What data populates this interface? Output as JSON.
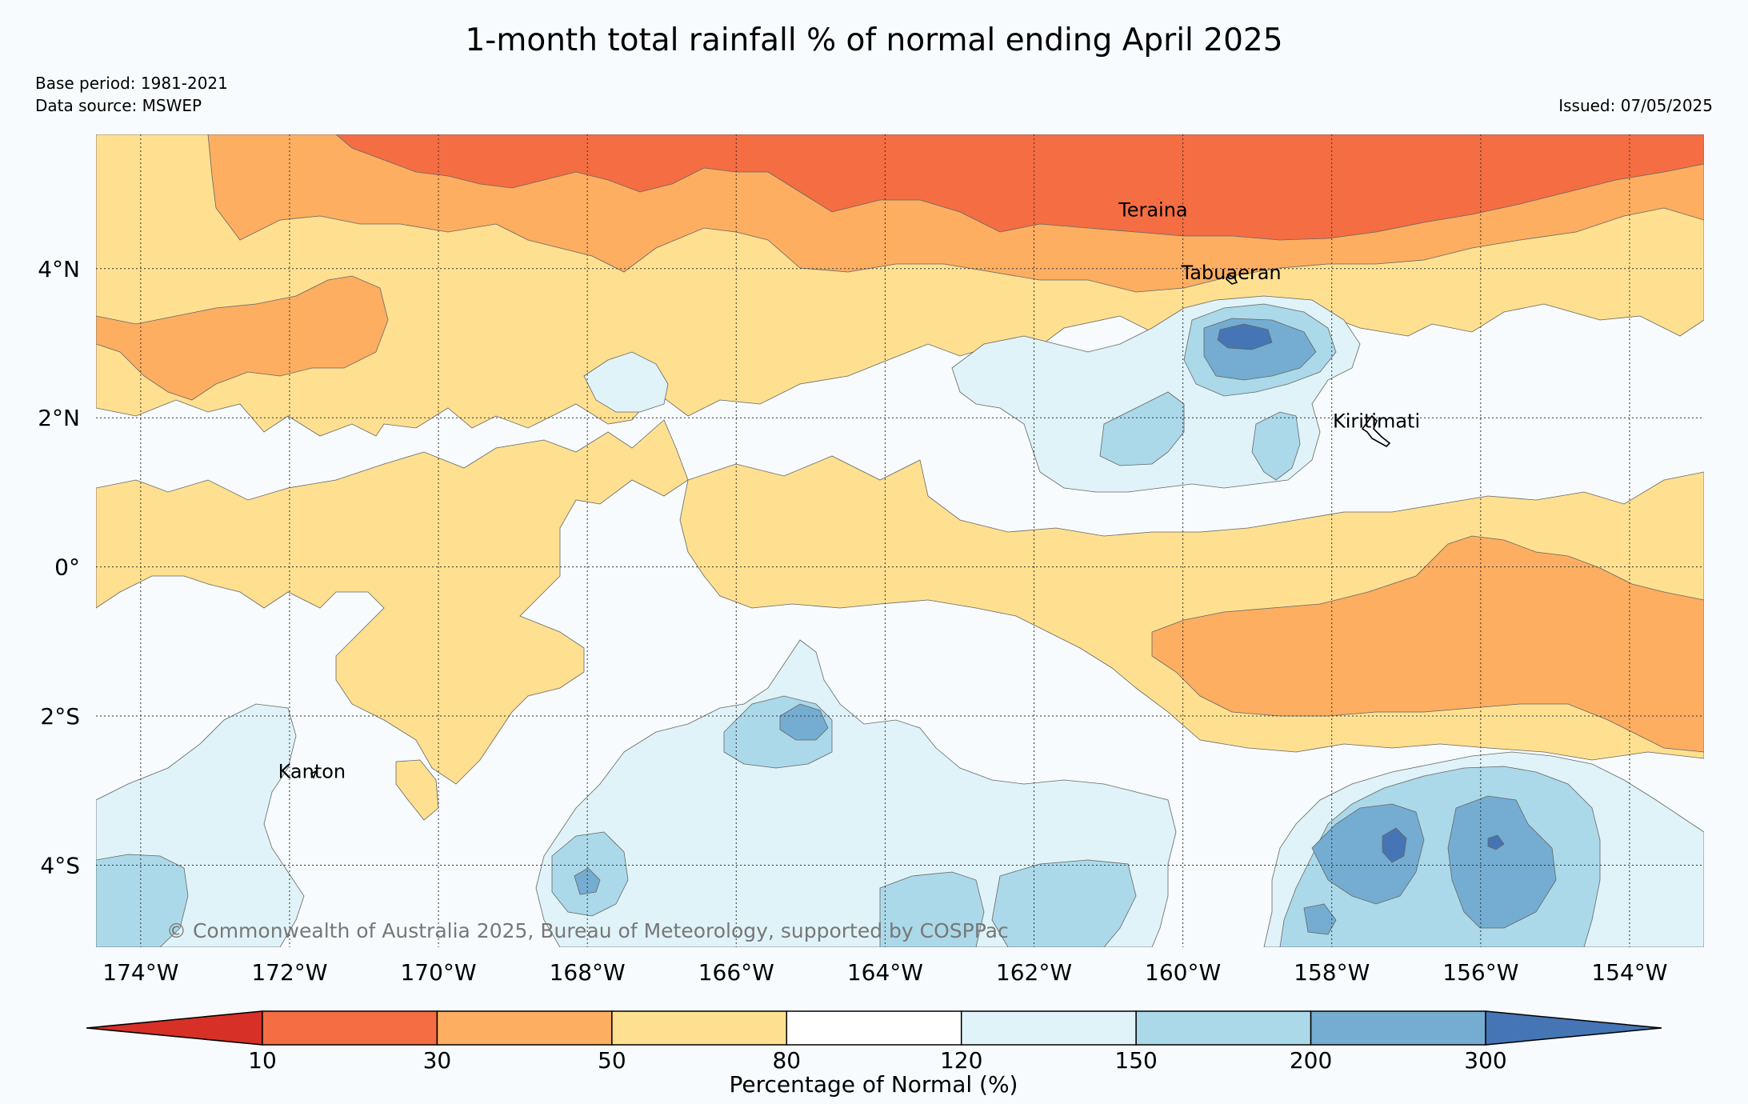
{
  "title": "1-month total rainfall % of normal ending April 2025",
  "base_period": "Base period: 1981-2021",
  "data_source": "Data source: MSWEP",
  "issued": "Issued: 07/05/2025",
  "copyright": "© Commonwealth of Australia 2025, Bureau of Meteorology, supported by COSPPac",
  "map": {
    "lon_range": [
      -174.6,
      -153.0
    ],
    "lat_range": [
      -5.1,
      5.8
    ],
    "lon_ticks": [
      {
        "value": -174,
        "label": "174°W"
      },
      {
        "value": -172,
        "label": "172°W"
      },
      {
        "value": -170,
        "label": "170°W"
      },
      {
        "value": -168,
        "label": "168°W"
      },
      {
        "value": -166,
        "label": "166°W"
      },
      {
        "value": -164,
        "label": "164°W"
      },
      {
        "value": -162,
        "label": "162°W"
      },
      {
        "value": -160,
        "label": "160°W"
      },
      {
        "value": -158,
        "label": "158°W"
      },
      {
        "value": -156,
        "label": "156°W"
      },
      {
        "value": -154,
        "label": "154°W"
      }
    ],
    "lat_ticks": [
      {
        "value": 4,
        "label": "4°N"
      },
      {
        "value": 2,
        "label": "2°N"
      },
      {
        "value": 0,
        "label": "0°"
      },
      {
        "value": -2,
        "label": "2°S"
      },
      {
        "value": -4,
        "label": "4°S"
      }
    ],
    "places": [
      {
        "name": "Teraina",
        "lon": -160.4,
        "lat": 4.7
      },
      {
        "name": "Tabuaeran",
        "lon": -159.35,
        "lat": 3.86
      },
      {
        "name": "Kiritimati",
        "lon": -157.4,
        "lat": 1.87
      },
      {
        "name": "Kanton",
        "lon": -171.7,
        "lat": -2.83
      }
    ]
  },
  "legend": {
    "title": "Percentage of Normal (%)",
    "ticks": [
      "10",
      "30",
      "50",
      "80",
      "120",
      "150",
      "200",
      "300"
    ],
    "classes": [
      {
        "range": "<10",
        "color": "#d73027"
      },
      {
        "range": "10-30",
        "color": "#f46d43"
      },
      {
        "range": "30-50",
        "color": "#fdae61"
      },
      {
        "range": "50-80",
        "color": "#fee090"
      },
      {
        "range": "80-120",
        "color": "#ffffff"
      },
      {
        "range": "120-150",
        "color": "#e0f3f8"
      },
      {
        "range": "150-200",
        "color": "#abd9e9"
      },
      {
        "range": "200-300",
        "color": "#74add1"
      },
      {
        "range": ">300",
        "color": "#4575b4"
      }
    ]
  }
}
